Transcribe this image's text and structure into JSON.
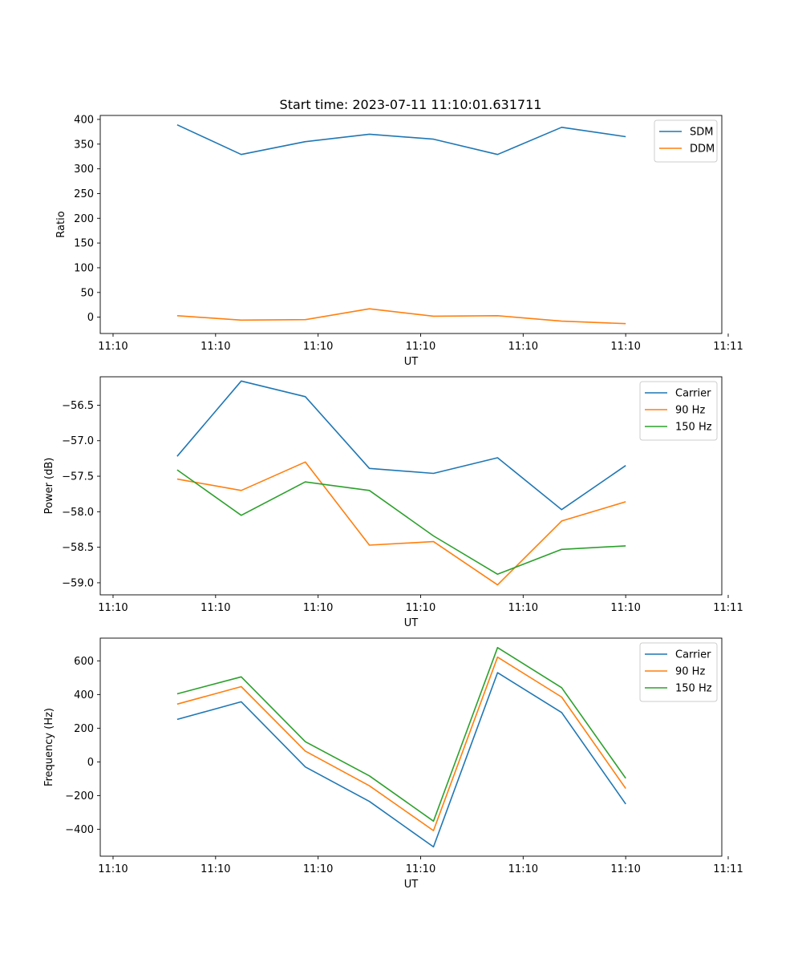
{
  "colors": {
    "c0": "#1f77b4",
    "c1": "#ff7f0e",
    "c2": "#2ca02c",
    "frame": "#000000",
    "legend_border": "#cccccc"
  },
  "chart_data": [
    {
      "type": "line",
      "title": "Start time: 2023-07-11 11:10:01.631711",
      "xlabel": "UT",
      "ylabel": "Ratio",
      "x": [
        0.5,
        1.0,
        1.5,
        2.0,
        2.5,
        3.0,
        3.5,
        4.0
      ],
      "xlim": [
        -0.1,
        4.75
      ],
      "xticks": [
        0,
        0.8,
        1.6,
        2.4,
        3.2,
        4.0,
        4.8
      ],
      "xtick_labels": [
        "11:10",
        "11:10",
        "11:10",
        "11:10",
        "11:10",
        "11:10",
        "11:11"
      ],
      "ylim": [
        -33,
        408
      ],
      "yticks": [
        0,
        50,
        100,
        150,
        200,
        250,
        300,
        350,
        400
      ],
      "ytick_labels": [
        "0",
        "50",
        "100",
        "150",
        "200",
        "250",
        "300",
        "350",
        "400"
      ],
      "legend_position": "top-right",
      "series": [
        {
          "name": "SDM",
          "color": "#1f77b4",
          "values": [
            389,
            329,
            355,
            370,
            360,
            329,
            384,
            365
          ]
        },
        {
          "name": "DDM",
          "color": "#ff7f0e",
          "values": [
            3,
            -6,
            -5,
            17,
            2,
            3,
            -8,
            -13
          ]
        }
      ]
    },
    {
      "type": "line",
      "title": "",
      "xlabel": "UT",
      "ylabel": "Power (dB)",
      "x": [
        0.5,
        1.0,
        1.5,
        2.0,
        2.5,
        3.0,
        3.5,
        4.0
      ],
      "xlim": [
        -0.1,
        4.75
      ],
      "xticks": [
        0,
        0.8,
        1.6,
        2.4,
        3.2,
        4.0,
        4.8
      ],
      "xtick_labels": [
        "11:10",
        "11:10",
        "11:10",
        "11:10",
        "11:10",
        "11:10",
        "11:11"
      ],
      "ylim": [
        -59.17,
        -56.1
      ],
      "yticks": [
        -59.0,
        -58.5,
        -58.0,
        -57.5,
        -57.0,
        -56.5
      ],
      "ytick_labels": [
        "−59.0",
        "−58.5",
        "−58.0",
        "−57.5",
        "−57.0",
        "−56.5"
      ],
      "legend_position": "top-right",
      "series": [
        {
          "name": "Carrier",
          "color": "#1f77b4",
          "values": [
            -57.22,
            -56.16,
            -56.38,
            -57.39,
            -57.46,
            -57.24,
            -57.97,
            -57.35
          ]
        },
        {
          "name": "90 Hz",
          "color": "#ff7f0e",
          "values": [
            -57.54,
            -57.7,
            -57.3,
            -58.47,
            -58.42,
            -59.03,
            -58.13,
            -57.86
          ]
        },
        {
          "name": "150 Hz",
          "color": "#2ca02c",
          "values": [
            -57.41,
            -58.05,
            -57.58,
            -57.7,
            -58.34,
            -58.88,
            -58.53,
            -58.48
          ]
        }
      ]
    },
    {
      "type": "line",
      "title": "",
      "xlabel": "UT",
      "ylabel": "Frequency (Hz)",
      "x": [
        0.5,
        1.0,
        1.5,
        2.0,
        2.5,
        3.0,
        3.5,
        4.0
      ],
      "xlim": [
        -0.1,
        4.75
      ],
      "xticks": [
        0,
        0.8,
        1.6,
        2.4,
        3.2,
        4.0,
        4.8
      ],
      "xtick_labels": [
        "11:10",
        "11:10",
        "11:10",
        "11:10",
        "11:10",
        "11:10",
        "11:11"
      ],
      "ylim": [
        -560,
        735
      ],
      "yticks": [
        -400,
        -200,
        0,
        200,
        400,
        600
      ],
      "ytick_labels": [
        "−400",
        "−200",
        "0",
        "200",
        "400",
        "600"
      ],
      "legend_position": "top-right",
      "series": [
        {
          "name": "Carrier",
          "color": "#1f77b4",
          "values": [
            252,
            357,
            -30,
            -235,
            -505,
            530,
            293,
            -250
          ]
        },
        {
          "name": "90 Hz",
          "color": "#ff7f0e",
          "values": [
            343,
            447,
            64,
            -142,
            -408,
            622,
            385,
            -158
          ]
        },
        {
          "name": "150 Hz",
          "color": "#2ca02c",
          "values": [
            404,
            505,
            120,
            -83,
            -352,
            679,
            441,
            -97
          ]
        }
      ]
    }
  ]
}
